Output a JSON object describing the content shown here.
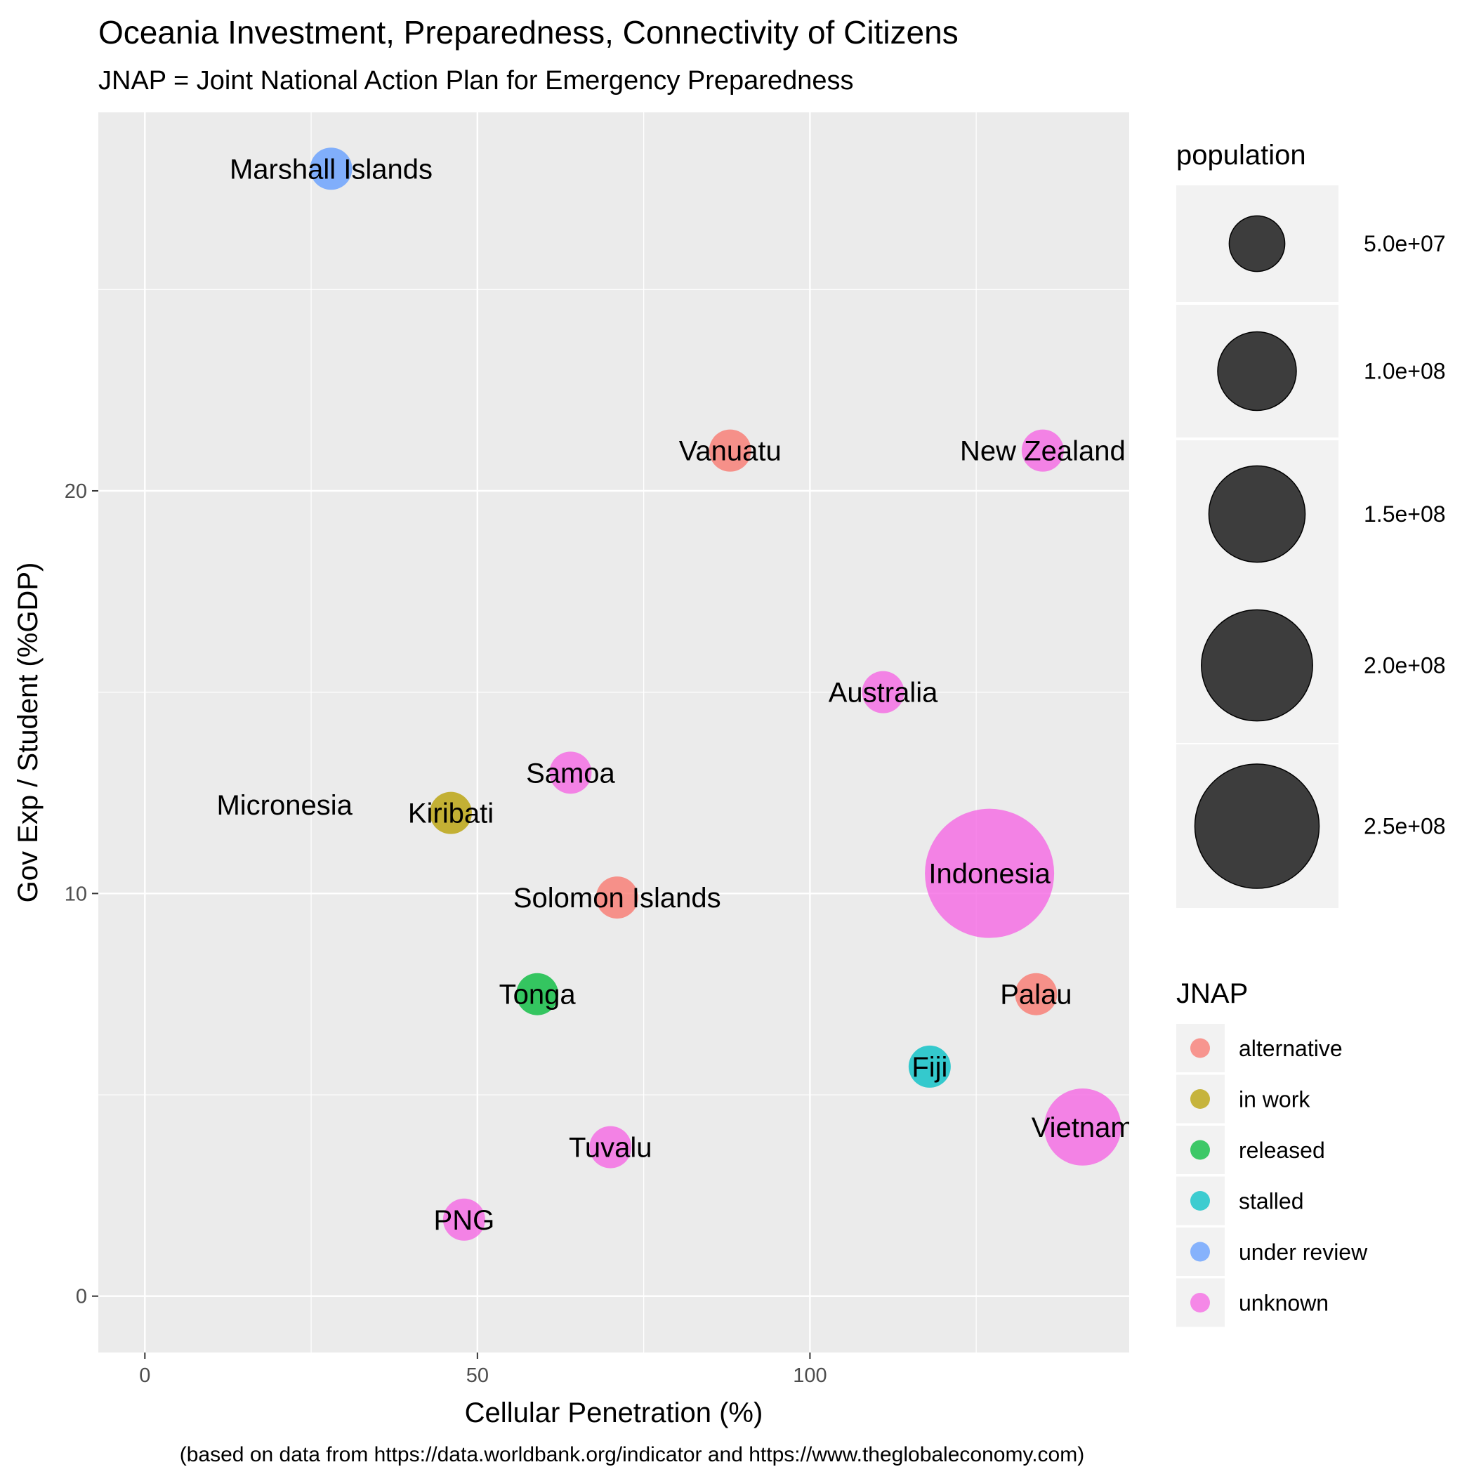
{
  "chart_data": {
    "type": "scatter",
    "title": "Oceania Investment, Preparedness, Connectivity of Citizens",
    "subtitle": "JNAP = Joint National Action Plan for Emergency Preparedness",
    "xlabel": "Cellular Penetration (%)",
    "ylabel": "Gov Exp / Student (%GDP)",
    "caption": "(based on data from https://data.worldbank.org/indicator and https://www.theglobaleconomy.com)",
    "xlim": [
      -7,
      148
    ],
    "ylim": [
      -1.4,
      29.4
    ],
    "x_ticks": [
      0,
      50,
      100
    ],
    "y_ticks": [
      0,
      10,
      20
    ],
    "grid": true,
    "legend_position": "right",
    "size_legend": {
      "title": "population",
      "entries": [
        {
          "label": "5.0e+07",
          "value": 50000000
        },
        {
          "label": "1.0e+08",
          "value": 100000000
        },
        {
          "label": "1.5e+08",
          "value": 150000000
        },
        {
          "label": "2.0e+08",
          "value": 200000000
        },
        {
          "label": "2.5e+08",
          "value": 250000000
        }
      ]
    },
    "color_legend": {
      "title": "JNAP",
      "entries": [
        {
          "label": "alternative",
          "color": "#F8766D"
        },
        {
          "label": "in work",
          "color": "#B79F00"
        },
        {
          "label": "released",
          "color": "#00BA38"
        },
        {
          "label": "stalled",
          "color": "#00BFC4"
        },
        {
          "label": "under review",
          "color": "#619CFF"
        },
        {
          "label": "unknown",
          "color": "#F564E3"
        }
      ]
    },
    "points": [
      {
        "label": "Marshall Islands",
        "x": 28,
        "y": 28.0,
        "population": 58000,
        "jnap": "under review"
      },
      {
        "label": "Vanuatu",
        "x": 88,
        "y": 21.0,
        "population": 300000,
        "jnap": "alternative"
      },
      {
        "label": "New Zealand",
        "x": 135,
        "y": 21.0,
        "population": 4900000,
        "jnap": "unknown"
      },
      {
        "label": "Australia",
        "x": 111,
        "y": 15.0,
        "population": 25000000,
        "jnap": "unknown"
      },
      {
        "label": "Samoa",
        "x": 64,
        "y": 13.0,
        "population": 200000,
        "jnap": "unknown"
      },
      {
        "label": "Micronesia",
        "x": 21,
        "y": 12.2,
        "population": 0,
        "jnap": "unknown"
      },
      {
        "label": "Kiribati",
        "x": 46,
        "y": 12.0,
        "population": 120000,
        "jnap": "in work"
      },
      {
        "label": "Indonesia",
        "x": 127,
        "y": 10.5,
        "population": 270000000,
        "jnap": "unknown"
      },
      {
        "label": "Solomon Islands",
        "x": 71,
        "y": 9.9,
        "population": 680000,
        "jnap": "alternative"
      },
      {
        "label": "Tonga",
        "x": 59,
        "y": 7.5,
        "population": 100000,
        "jnap": "released"
      },
      {
        "label": "Palau",
        "x": 134,
        "y": 7.5,
        "population": 18000,
        "jnap": "alternative"
      },
      {
        "label": "Fiji",
        "x": 118,
        "y": 5.7,
        "population": 890000,
        "jnap": "stalled"
      },
      {
        "label": "Vietnam",
        "x": 141,
        "y": 4.2,
        "population": 96000000,
        "jnap": "unknown"
      },
      {
        "label": "Tuvalu",
        "x": 70,
        "y": 3.7,
        "population": 11000,
        "jnap": "unknown"
      },
      {
        "label": "PNG",
        "x": 48,
        "y": 1.9,
        "population": 8900000,
        "jnap": "unknown"
      }
    ]
  }
}
